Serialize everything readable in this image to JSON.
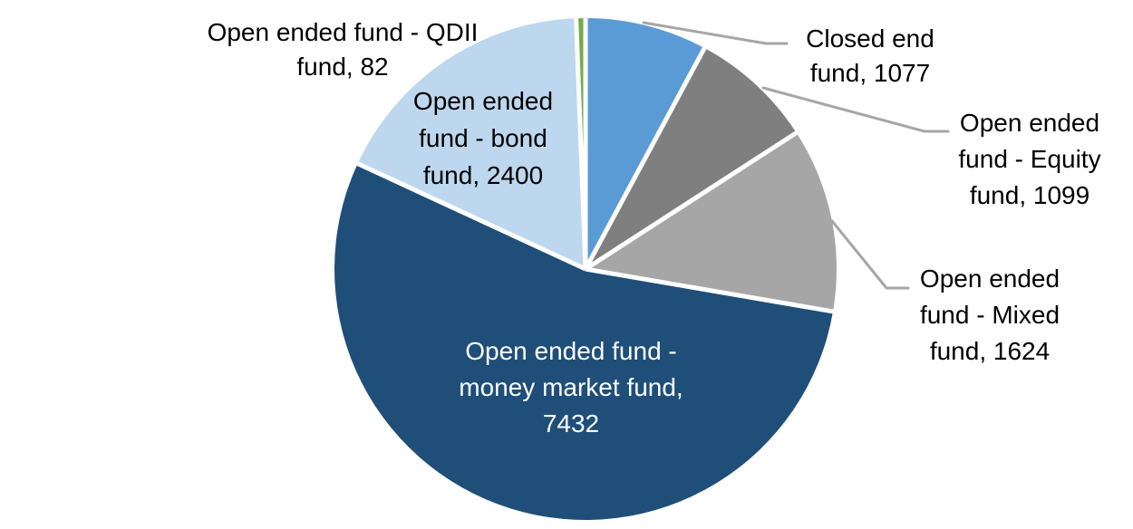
{
  "chart_data": {
    "type": "pie",
    "title": "",
    "legend": "none",
    "background_color": "#FFFFFF",
    "start_angle_deg": 0,
    "direction": "clockwise",
    "slice_separator_color": "#FFFFFF",
    "leader_line_color": "#A6A6A6",
    "categories": [
      "Closed end fund",
      "Open ended fund - Equity fund",
      "Open ended fund - Mixed fund",
      "Open ended fund - money market fund",
      "Open ended fund - bond fund",
      "Open ended fund - QDII fund"
    ],
    "values": [
      1077,
      1099,
      1624,
      7432,
      2400,
      82
    ],
    "colors": [
      "#5B9BD5",
      "#7F7F7F",
      "#A6A6A6",
      "#1F4E79",
      "#BDD7EE",
      "#70AD47"
    ],
    "label_text_colors": [
      "#000000",
      "#000000",
      "#000000",
      "#FFFFFF",
      "#000000",
      "#000000"
    ],
    "labels": [
      {
        "text": "Closed end\nfund, 1077"
      },
      {
        "text": "Open ended\nfund - Equity\nfund, 1099"
      },
      {
        "text": "Open ended\nfund - Mixed\nfund, 1624"
      },
      {
        "text": "Open ended fund -\nmoney market fund,\n7432"
      },
      {
        "text": "Open ended\nfund - bond\nfund, 2400"
      },
      {
        "text": "Open ended fund - QDII\nfund, 82"
      }
    ]
  }
}
